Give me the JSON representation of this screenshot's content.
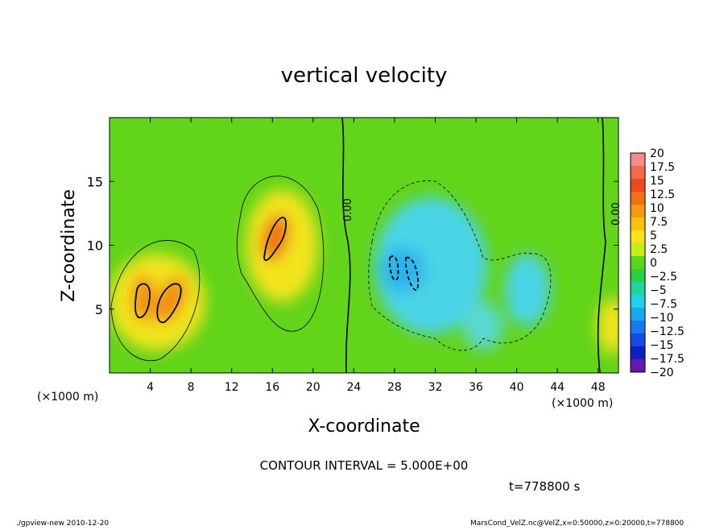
{
  "chart_data": {
    "type": "heatmap",
    "title": "vertical velocity",
    "xlabel": "X-coordinate",
    "ylabel": "Z-coordinate",
    "x_unit_left": "(×1000 m)",
    "x_unit_right": "(×1000 m)",
    "xlim": [
      0,
      50
    ],
    "ylim": [
      0,
      20
    ],
    "x_ticks": [
      4,
      8,
      12,
      16,
      20,
      24,
      28,
      32,
      36,
      40,
      44,
      48
    ],
    "y_ticks": [
      5,
      10,
      15
    ],
    "colorbar": {
      "labels": [
        "20",
        "17.5",
        "15",
        "12.5",
        "10",
        "7.5",
        "5",
        "2.5",
        "0",
        "−2.5",
        "−5",
        "−7.5",
        "−10",
        "−12.5",
        "−15",
        "−17.5",
        "−20"
      ],
      "levels": [
        20,
        17.5,
        15,
        12.5,
        10,
        7.5,
        5,
        2.5,
        0,
        -2.5,
        -5,
        -7.5,
        -10,
        -12.5,
        -15,
        -17.5,
        -20
      ],
      "colors": [
        "#f58b8b",
        "#f26a4a",
        "#ec4b18",
        "#f07018",
        "#f49a10",
        "#f8c010",
        "#f4e418",
        "#c8ec18",
        "#5ad818",
        "#28d048",
        "#22d49a",
        "#20d0e8",
        "#18a8f0",
        "#1878f0",
        "#1848e8",
        "#1020c0",
        "#6818b0"
      ]
    },
    "contour_interval_text": "CONTOUR INTERVAL = 5.000E+00",
    "contour_zero_labels": [
      "0.00",
      "0.00"
    ],
    "time_text": "t=778800 s",
    "features": [
      {
        "name": "updraft",
        "x": 5,
        "z": 6,
        "peak": 11
      },
      {
        "name": "updraft",
        "x": 16.5,
        "z": 11,
        "peak": 13
      },
      {
        "name": "downdraft",
        "x": 30,
        "z": 8,
        "peak": -9
      },
      {
        "name": "downdraft",
        "x": 40,
        "z": 6,
        "peak": -5
      }
    ]
  },
  "footer": {
    "left": "./gpview-new   2010-12-20",
    "right": "MarsCond_VelZ.nc@VelZ,x=0:50000,z=0:20000,t=778800"
  }
}
